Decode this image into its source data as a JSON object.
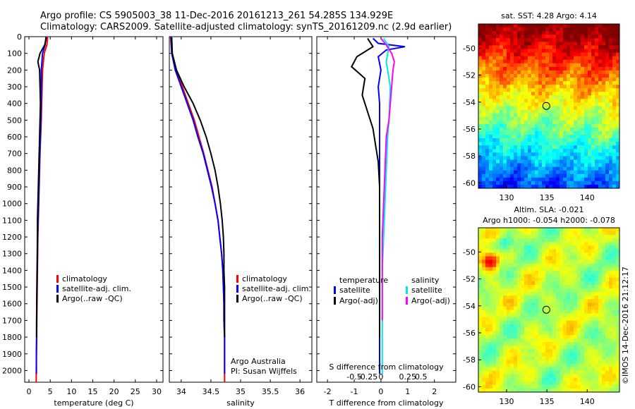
{
  "header": {
    "line1": "Argo profile: CS 5905003_38 11-Dec-2016 20161213_261 54.285S 134.929E",
    "line2": "Climatology: CARS2009. Satellite-adjusted climatology: synTS_20161209.nc (2.9d earlier)"
  },
  "colors": {
    "climatology": "#ff0000",
    "satellite": "#0000ff",
    "argo": "#000000",
    "salinity_satellite": "#00e8e8",
    "salinity_argo": "#ff00ff"
  },
  "chart_data": [
    {
      "type": "line",
      "xlabel": "temperature (deg C)",
      "ylabel": "",
      "xlim": [
        -1,
        31.5
      ],
      "ylim": [
        2070,
        0
      ],
      "xticks": [
        0,
        5,
        10,
        15,
        20,
        25,
        30
      ],
      "xtick_labels": [
        "0",
        "5",
        "10",
        "15",
        "20",
        "25",
        "30"
      ],
      "yticks": [
        0,
        100,
        200,
        300,
        400,
        500,
        600,
        700,
        800,
        900,
        1000,
        1100,
        1200,
        1300,
        1400,
        1500,
        1600,
        1700,
        1800,
        1900,
        2000
      ],
      "legend": [
        "climatology",
        "satellite-adj. clim.",
        "Argo(..raw -QC)"
      ],
      "series": [
        {
          "name": "climatology",
          "color": "#ff0000",
          "x": [
            4.4,
            4.2,
            3.6,
            3.2,
            3.1,
            3.0,
            2.9,
            2.75,
            2.6,
            2.5,
            2.4,
            2.3,
            2.2,
            2.1,
            2.05,
            2.0,
            1.95,
            1.9,
            1.85,
            1.8,
            1.75,
            1.7
          ],
          "y": [
            0,
            50,
            100,
            200,
            300,
            400,
            500,
            600,
            700,
            800,
            900,
            1000,
            1100,
            1200,
            1300,
            1400,
            1500,
            1600,
            1700,
            1800,
            1900,
            2070
          ]
        },
        {
          "name": "satellite-adj. clim.",
          "color": "#0000ff",
          "x": [
            4.0,
            3.8,
            3.2,
            2.9,
            2.9,
            2.85,
            2.8,
            2.7,
            2.55,
            2.45,
            2.35,
            2.25,
            2.15,
            2.05,
            2.0,
            1.95,
            1.9,
            1.85,
            1.8,
            1.8,
            1.75,
            1.75
          ],
          "y": [
            0,
            50,
            100,
            200,
            300,
            400,
            500,
            600,
            700,
            800,
            900,
            1000,
            1100,
            1200,
            1300,
            1400,
            1500,
            1600,
            1700,
            1800,
            1900,
            2020
          ]
        },
        {
          "name": "Argo(..raw -QC)",
          "color": "#000000",
          "x": [
            4.1,
            3.7,
            2.6,
            2.1,
            2.5,
            2.6,
            2.7,
            2.6,
            2.5,
            2.4,
            2.3,
            2.2,
            2.1,
            2.0,
            1.98,
            1.95,
            1.9,
            1.85,
            1.82,
            1.8,
            1.78
          ],
          "y": [
            5,
            50,
            100,
            150,
            200,
            300,
            400,
            500,
            600,
            700,
            800,
            900,
            1000,
            1100,
            1200,
            1300,
            1400,
            1500,
            1600,
            1700,
            1800
          ]
        }
      ]
    },
    {
      "type": "line",
      "xlabel": "salinity",
      "ylabel": "",
      "xlim": [
        33.8,
        36.2
      ],
      "ylim": [
        2070,
        0
      ],
      "xticks": [
        34,
        34.5,
        35,
        35.5,
        36
      ],
      "xtick_labels": [
        "34",
        "34.5",
        "35",
        "35.5",
        "36"
      ],
      "legend": [
        "climatology",
        "satellite-adj. clim.",
        "Argo(..raw -QC)"
      ],
      "annotations": [
        "Argo Australia",
        "PI: Susan Wijffels"
      ],
      "series": [
        {
          "name": "climatology",
          "color": "#ff0000",
          "x": [
            33.82,
            33.84,
            33.92,
            34.02,
            34.12,
            34.22,
            34.3,
            34.38,
            34.45,
            34.52,
            34.57,
            34.62,
            34.65,
            34.68,
            34.7,
            34.71,
            34.72,
            34.72,
            34.73,
            34.73,
            34.73,
            34.73
          ],
          "y": [
            0,
            100,
            200,
            300,
            400,
            500,
            600,
            700,
            800,
            900,
            1000,
            1100,
            1200,
            1300,
            1400,
            1500,
            1600,
            1700,
            1800,
            1900,
            2000,
            2070
          ]
        },
        {
          "name": "satellite-adj. clim.",
          "color": "#0000ff",
          "x": [
            33.83,
            33.84,
            33.9,
            34.0,
            34.1,
            34.2,
            34.28,
            34.37,
            34.44,
            34.51,
            34.57,
            34.62,
            34.65,
            34.68,
            34.7,
            34.71,
            34.72,
            34.72,
            34.73,
            34.73,
            34.73
          ],
          "y": [
            0,
            100,
            200,
            300,
            400,
            500,
            600,
            700,
            800,
            900,
            1000,
            1100,
            1200,
            1300,
            1400,
            1500,
            1600,
            1700,
            1800,
            1900,
            2020
          ]
        },
        {
          "name": "Argo(..raw -QC)",
          "color": "#000000",
          "x": [
            33.84,
            33.85,
            33.92,
            34.05,
            34.2,
            34.32,
            34.42,
            34.5,
            34.57,
            34.62,
            34.66,
            34.69,
            34.71,
            34.72,
            34.72,
            34.73,
            34.73,
            34.73,
            34.73
          ],
          "y": [
            5,
            100,
            200,
            300,
            400,
            500,
            600,
            700,
            800,
            900,
            1000,
            1100,
            1200,
            1300,
            1400,
            1500,
            1600,
            1700,
            1800
          ]
        }
      ]
    },
    {
      "type": "line",
      "xlabel": "T difference from climatology",
      "secondary_xlabel": "S difference from climatology",
      "xlim": [
        -2.4,
        2.8
      ],
      "ylim": [
        2070,
        0
      ],
      "xticks": [
        -2,
        -1,
        0,
        1,
        2
      ],
      "xtick_labels": [
        "-2",
        "-1",
        "0",
        "1",
        "2"
      ],
      "secondary_xticks": [
        -1,
        -0.5,
        0,
        1,
        1.5
      ],
      "secondary_xtick_labels": [
        "-0.5",
        "-0.25",
        "0",
        "0.25",
        "0.5"
      ],
      "legend_groups": [
        {
          "title": "temperature",
          "entries": [
            "satellite",
            "Argo(-adj)"
          ]
        },
        {
          "title": "salinity",
          "entries": [
            "satellite",
            "Argo(-adj)"
          ]
        }
      ],
      "series": [
        {
          "name": "temperature satellite",
          "color": "#0000ff",
          "x": [
            -0.3,
            -0.1,
            0.9,
            0.2,
            -0.1,
            0.0,
            -0.1,
            -0.05,
            -0.05,
            -0.05,
            -0.05,
            -0.05,
            -0.05,
            -0.05,
            -0.05,
            -0.05,
            -0.05,
            -0.05
          ],
          "y": [
            10,
            40,
            60,
            80,
            120,
            200,
            300,
            400,
            600,
            800,
            1000,
            1200,
            1400,
            1600,
            1800,
            1900,
            2000,
            2020
          ]
        },
        {
          "name": "temperature Argo(-adj)",
          "color": "#000000",
          "x": [
            -0.5,
            -0.3,
            -0.9,
            -1.1,
            -0.6,
            -0.7,
            -0.5,
            -0.3,
            -0.2,
            -0.1,
            -0.05,
            -0.05,
            -0.05,
            -0.05,
            -0.05,
            -0.05,
            -0.05
          ],
          "y": [
            10,
            60,
            120,
            180,
            250,
            350,
            450,
            550,
            650,
            750,
            900,
            1100,
            1300,
            1500,
            1600,
            1700,
            1800
          ]
        },
        {
          "name": "salinity satellite",
          "color": "#00e8e8",
          "x": [
            0.1,
            0.3,
            0.2,
            0.35,
            0.3,
            0.25,
            0.2,
            0.15,
            0.1,
            0.05,
            0.05,
            0.05,
            0.05,
            0.05
          ],
          "y": [
            10,
            60,
            150,
            300,
            500,
            600,
            800,
            1000,
            1200,
            1400,
            1600,
            1800,
            1900,
            2020
          ]
        },
        {
          "name": "salinity Argo(-adj)",
          "color": "#ff00ff",
          "x": [
            0.0,
            0.2,
            0.4,
            0.5,
            0.45,
            0.4,
            0.35,
            0.3,
            0.2,
            0.15,
            0.1,
            0.05,
            0.05,
            0.05
          ],
          "y": [
            10,
            50,
            100,
            150,
            200,
            300,
            400,
            500,
            600,
            800,
            1000,
            1200,
            1400,
            1700
          ]
        }
      ]
    },
    {
      "type": "heatmap",
      "title": "sat. SST: 4.28 Argo: 4.14",
      "xlim": [
        126.5,
        144
      ],
      "ylim": [
        -60.4,
        -48.2
      ],
      "xticks": [
        130,
        135,
        140
      ],
      "yticks": [
        -50,
        -52,
        -54,
        -56,
        -58,
        -60
      ],
      "xtick_labels": [
        "130",
        "135",
        "140"
      ],
      "ytick_labels": [
        "-50",
        "-52",
        "-54",
        "-56",
        "-58",
        "-60"
      ],
      "marker": {
        "lon": 134.929,
        "lat": -54.285
      }
    },
    {
      "type": "heatmap",
      "title": "Altim. SLA: -0.021",
      "subtitle": "Argo h1000: -0.054 h2000: -0.078",
      "xlim": [
        126.5,
        144
      ],
      "ylim": [
        -60.4,
        -48.2
      ],
      "xticks": [
        130,
        135,
        140
      ],
      "yticks": [
        -50,
        -52,
        -54,
        -56,
        -58,
        -60
      ],
      "xtick_labels": [
        "130",
        "135",
        "140"
      ],
      "ytick_labels": [
        "-50",
        "-52",
        "-54",
        "-56",
        "-58",
        "-60"
      ],
      "marker": {
        "lon": 134.929,
        "lat": -54.285
      }
    }
  ],
  "credit": "©IMOS 14-Dec-2016 21:12:17"
}
